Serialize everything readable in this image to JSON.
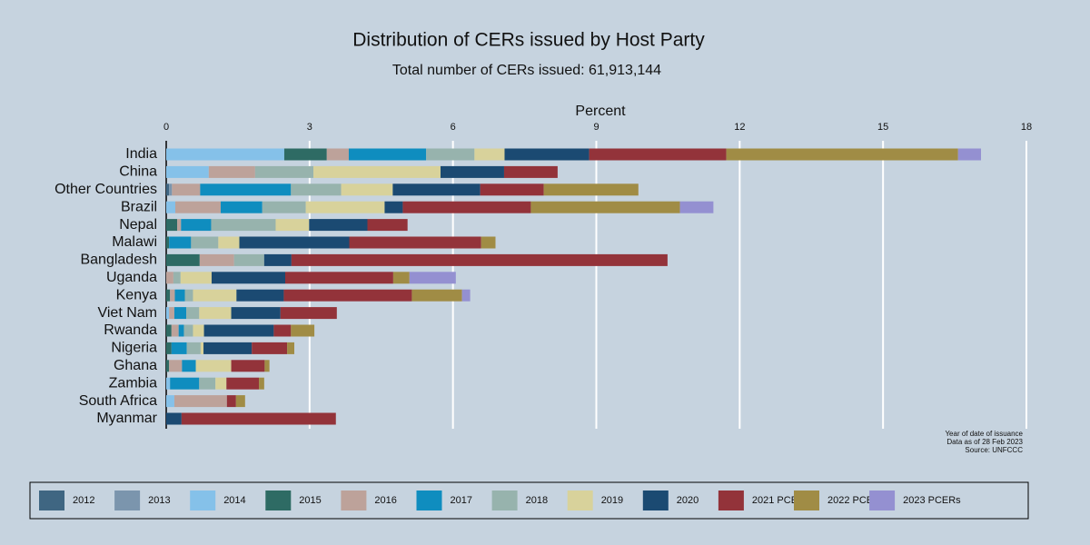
{
  "chart_data": {
    "type": "stacked-barh",
    "title": "Distribution of CERs issued by Host Party",
    "subtitle": "Total number of CERs issued: 61,913,144",
    "x_label": "Percent",
    "notes": [
      "Year of date of issuance",
      "Data as of 28 Feb 2023",
      "Source: UNFCCC"
    ],
    "categories": [
      "India",
      "China",
      "Other Countries",
      "Brazil",
      "Nepal",
      "Malawi",
      "Bangladesh",
      "Uganda",
      "Kenya",
      "Viet Nam",
      "Rwanda",
      "Nigeria",
      "Ghana",
      "Zambia",
      "South Africa",
      "Myanmar"
    ],
    "xlim": [
      0,
      18
    ],
    "xticks": [
      0,
      3,
      6,
      9,
      12,
      15,
      18
    ],
    "grid": true,
    "series": [
      {
        "name": "2012",
        "color": "#3f6682",
        "values": [
          0,
          0,
          0.06,
          0,
          0,
          0,
          0,
          0,
          0,
          0,
          0,
          0,
          0,
          0,
          0,
          0
        ]
      },
      {
        "name": "2013",
        "color": "#7b95ad",
        "values": [
          0,
          0,
          0.06,
          0,
          0,
          0,
          0,
          0,
          0,
          0,
          0,
          0,
          0,
          0,
          0,
          0
        ]
      },
      {
        "name": "2014",
        "color": "#85c1e9",
        "values": [
          2.47,
          0.89,
          0,
          0.19,
          0,
          0,
          0,
          0,
          0,
          0.06,
          0,
          0,
          0,
          0.08,
          0.17,
          0
        ]
      },
      {
        "name": "2015",
        "color": "#2e6b64",
        "values": [
          0.89,
          0,
          0,
          0,
          0.23,
          0.06,
          0.7,
          0,
          0.08,
          0,
          0.11,
          0.11,
          0.06,
          0,
          0,
          0
        ]
      },
      {
        "name": "2016",
        "color": "#bda29a",
        "values": [
          0.46,
          0.97,
          0.59,
          0.95,
          0.08,
          0,
          0.72,
          0.15,
          0.1,
          0.11,
          0.15,
          0,
          0.27,
          0,
          1.1,
          0
        ]
      },
      {
        "name": "2017",
        "color": "#0f8dbf",
        "values": [
          1.62,
          0,
          1.9,
          0.87,
          0.63,
          0.46,
          0,
          0,
          0.21,
          0.25,
          0.11,
          0.32,
          0.29,
          0.61,
          0,
          0
        ]
      },
      {
        "name": "2018",
        "color": "#97b3ad",
        "values": [
          1.01,
          1.22,
          1.05,
          0.91,
          1.35,
          0.57,
          0.63,
          0.15,
          0.17,
          0.27,
          0.19,
          0.29,
          0,
          0.34,
          0,
          0
        ]
      },
      {
        "name": "2019",
        "color": "#d8d29b",
        "values": [
          0.63,
          2.66,
          1.08,
          1.65,
          0.7,
          0.44,
          0,
          0.65,
          0.91,
          0.67,
          0.23,
          0.06,
          0.74,
          0.23,
          0,
          0
        ]
      },
      {
        "name": "2020",
        "color": "#1b4a72",
        "values": [
          1.77,
          1.33,
          1.83,
          0.38,
          1.22,
          2.3,
          0.57,
          1.54,
          0.99,
          1.03,
          1.46,
          1.01,
          0,
          0,
          0,
          0.32
        ]
      },
      {
        "name": "2021 PCERs",
        "color": "#93333a",
        "values": [
          2.87,
          1.12,
          1.33,
          2.68,
          0.84,
          2.76,
          7.87,
          2.26,
          2.68,
          1.18,
          0.36,
          0.74,
          0.7,
          0.68,
          0.19,
          3.23
        ]
      },
      {
        "name": "2022 PCERs",
        "color": "#a08c45",
        "values": [
          4.85,
          0,
          1.98,
          3.12,
          0,
          0.3,
          0,
          0.34,
          1.05,
          0,
          0.49,
          0.15,
          0.1,
          0.11,
          0.19,
          0
        ]
      },
      {
        "name": "2023 PCERs",
        "color": "#9490d1",
        "values": [
          0.48,
          0,
          0,
          0.7,
          0,
          0,
          0,
          0.97,
          0.17,
          0,
          0,
          0,
          0,
          0,
          0,
          0
        ]
      }
    ]
  }
}
